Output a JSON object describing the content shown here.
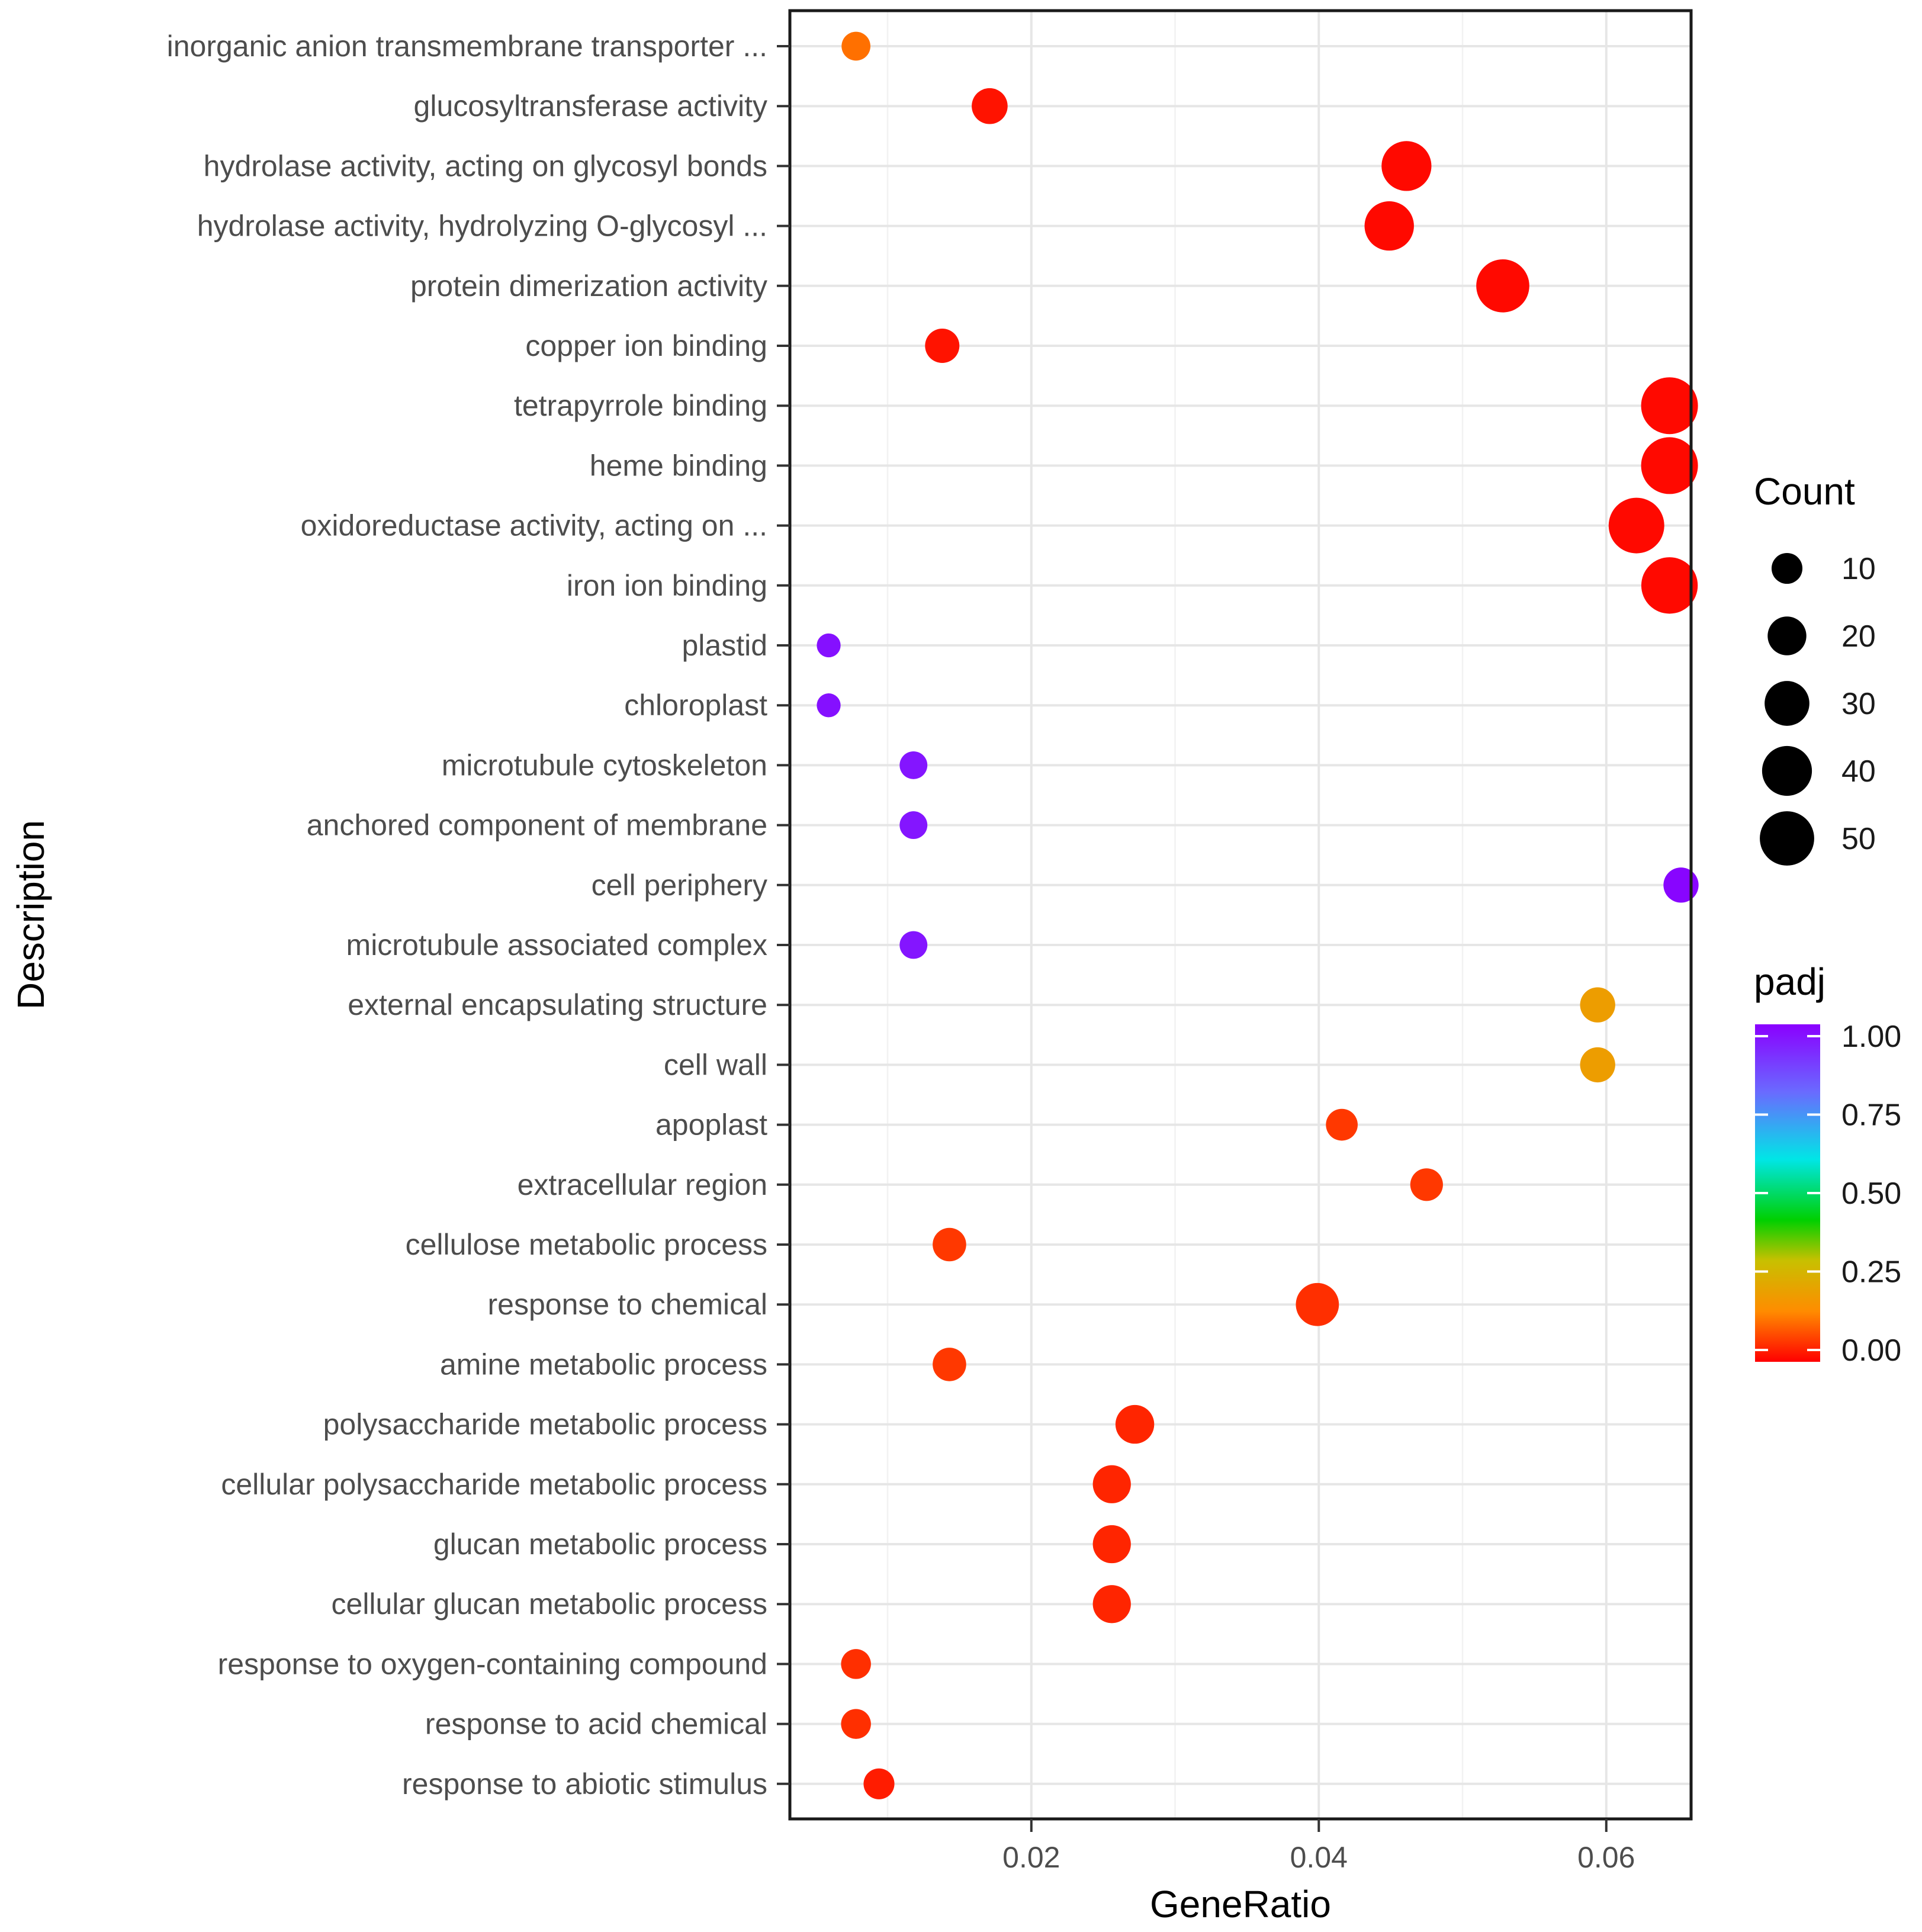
{
  "chart_data": {
    "type": "scatter",
    "title": "",
    "xlabel": "GeneRatio",
    "ylabel": "Description",
    "xlim": [
      0.0032,
      0.0659
    ],
    "xticks": [
      0.02,
      0.04,
      0.06
    ],
    "xtick_labels": [
      "0.02",
      "0.04",
      "0.06"
    ],
    "grid": true,
    "size_legend": {
      "title": "Count",
      "values": [
        10,
        20,
        30,
        40,
        50
      ],
      "labels": [
        "10",
        "20",
        "30",
        "40",
        "50"
      ]
    },
    "color_legend": {
      "title": "padj",
      "min": 0.0,
      "max": 1.0,
      "ticks": [
        1.0,
        0.75,
        0.5,
        0.25,
        0.0
      ],
      "tick_labels": [
        "1.00",
        "0.75",
        "0.50",
        "0.25",
        "0.00"
      ],
      "stops": [
        {
          "value": 0.0,
          "color": "#ff0000"
        },
        {
          "value": 0.15,
          "color": "#ff8c00"
        },
        {
          "value": 0.3,
          "color": "#c8c000"
        },
        {
          "value": 0.42,
          "color": "#00d000"
        },
        {
          "value": 0.6,
          "color": "#00e6e6"
        },
        {
          "value": 0.8,
          "color": "#6a6aff"
        },
        {
          "value": 1.0,
          "color": "#8a00ff"
        }
      ],
      "placement": "right"
    },
    "points": [
      {
        "description": "inorganic anion transmembrane transporter ...",
        "gene_ratio": 0.0078,
        "count": 8,
        "padj": 0.12
      },
      {
        "description": "glucosyltransferase activity",
        "gene_ratio": 0.0171,
        "count": 16,
        "padj": 0.02
      },
      {
        "description": "hydrolase activity, acting on glycosyl bonds",
        "gene_ratio": 0.0461,
        "count": 40,
        "padj": 0.01
      },
      {
        "description": "hydrolase activity, hydrolyzing O-glycosyl ...",
        "gene_ratio": 0.0449,
        "count": 39,
        "padj": 0.01
      },
      {
        "description": "protein dimerization activity",
        "gene_ratio": 0.0528,
        "count": 47,
        "padj": 0.01
      },
      {
        "description": "copper ion binding",
        "gene_ratio": 0.0138,
        "count": 14,
        "padj": 0.02
      },
      {
        "description": "tetrapyrrole binding",
        "gene_ratio": 0.0644,
        "count": 56,
        "padj": 0.01
      },
      {
        "description": "heme binding",
        "gene_ratio": 0.0644,
        "count": 56,
        "padj": 0.01
      },
      {
        "description": "oxidoreductase activity, acting on ...",
        "gene_ratio": 0.0621,
        "count": 53,
        "padj": 0.01
      },
      {
        "description": "iron ion binding",
        "gene_ratio": 0.0644,
        "count": 55,
        "padj": 0.01
      },
      {
        "description": "plastid",
        "gene_ratio": 0.0059,
        "count": 4,
        "padj": 0.97
      },
      {
        "description": "chloroplast",
        "gene_ratio": 0.0059,
        "count": 4,
        "padj": 0.97
      },
      {
        "description": "microtubule cytoskeleton",
        "gene_ratio": 0.0118,
        "count": 7,
        "padj": 0.96
      },
      {
        "description": "anchored component of membrane",
        "gene_ratio": 0.0118,
        "count": 7,
        "padj": 0.96
      },
      {
        "description": "cell periphery",
        "gene_ratio": 0.0652,
        "count": 15,
        "padj": 0.99
      },
      {
        "description": "microtubule associated complex",
        "gene_ratio": 0.0118,
        "count": 7,
        "padj": 0.96
      },
      {
        "description": "external encapsulating structure",
        "gene_ratio": 0.0594,
        "count": 15,
        "padj": 0.2
      },
      {
        "description": "cell wall",
        "gene_ratio": 0.0594,
        "count": 15,
        "padj": 0.2
      },
      {
        "description": "apoplast",
        "gene_ratio": 0.0416,
        "count": 11,
        "padj": 0.06
      },
      {
        "description": "extracellular region",
        "gene_ratio": 0.0475,
        "count": 12,
        "padj": 0.06
      },
      {
        "description": "cellulose metabolic process",
        "gene_ratio": 0.0143,
        "count": 13,
        "padj": 0.06
      },
      {
        "description": "response to chemical",
        "gene_ratio": 0.0399,
        "count": 27,
        "padj": 0.05
      },
      {
        "description": "amine metabolic process",
        "gene_ratio": 0.0143,
        "count": 13,
        "padj": 0.06
      },
      {
        "description": "polysaccharide metabolic process",
        "gene_ratio": 0.0272,
        "count": 20,
        "padj": 0.04
      },
      {
        "description": "cellular polysaccharide metabolic process",
        "gene_ratio": 0.0256,
        "count": 19,
        "padj": 0.04
      },
      {
        "description": "glucan metabolic process",
        "gene_ratio": 0.0256,
        "count": 19,
        "padj": 0.04
      },
      {
        "description": "cellular glucan metabolic process",
        "gene_ratio": 0.0256,
        "count": 19,
        "padj": 0.04
      },
      {
        "description": "response to oxygen-containing compound",
        "gene_ratio": 0.0078,
        "count": 9,
        "padj": 0.05
      },
      {
        "description": "response to acid chemical",
        "gene_ratio": 0.0078,
        "count": 9,
        "padj": 0.05
      },
      {
        "description": "response to abiotic stimulus",
        "gene_ratio": 0.0094,
        "count": 10,
        "padj": 0.03
      }
    ]
  }
}
